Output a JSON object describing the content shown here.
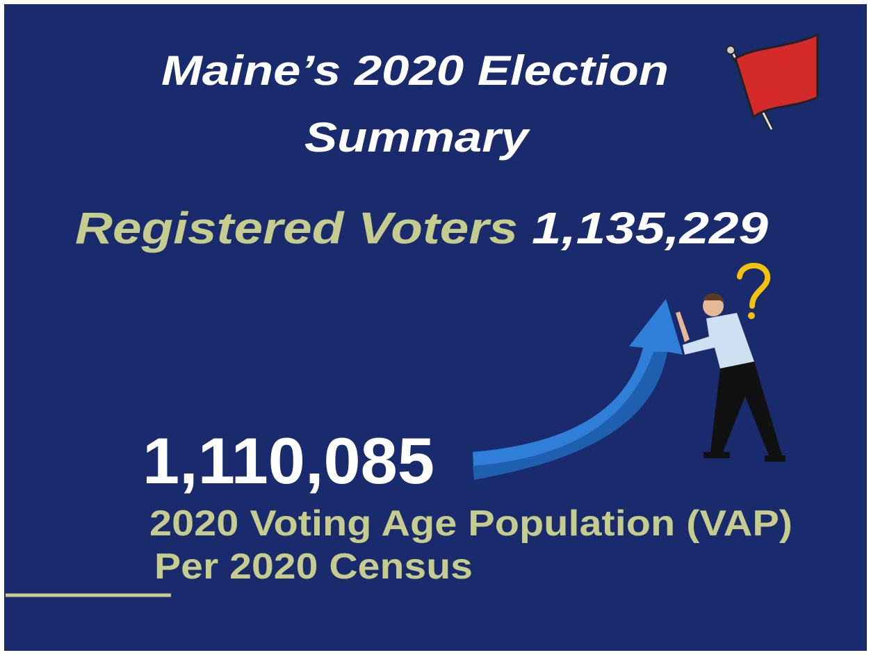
{
  "header": {
    "title_lines": [
      "Maine’s 2020 Election",
      "Summary"
    ]
  },
  "registered": {
    "label": "Registered Voters",
    "number": "1,135,229"
  },
  "vap": {
    "number": "1,110,085",
    "label_lines": [
      "2020 Voting Age Population (VAP)",
      "Per 2020 Census"
    ]
  }
}
